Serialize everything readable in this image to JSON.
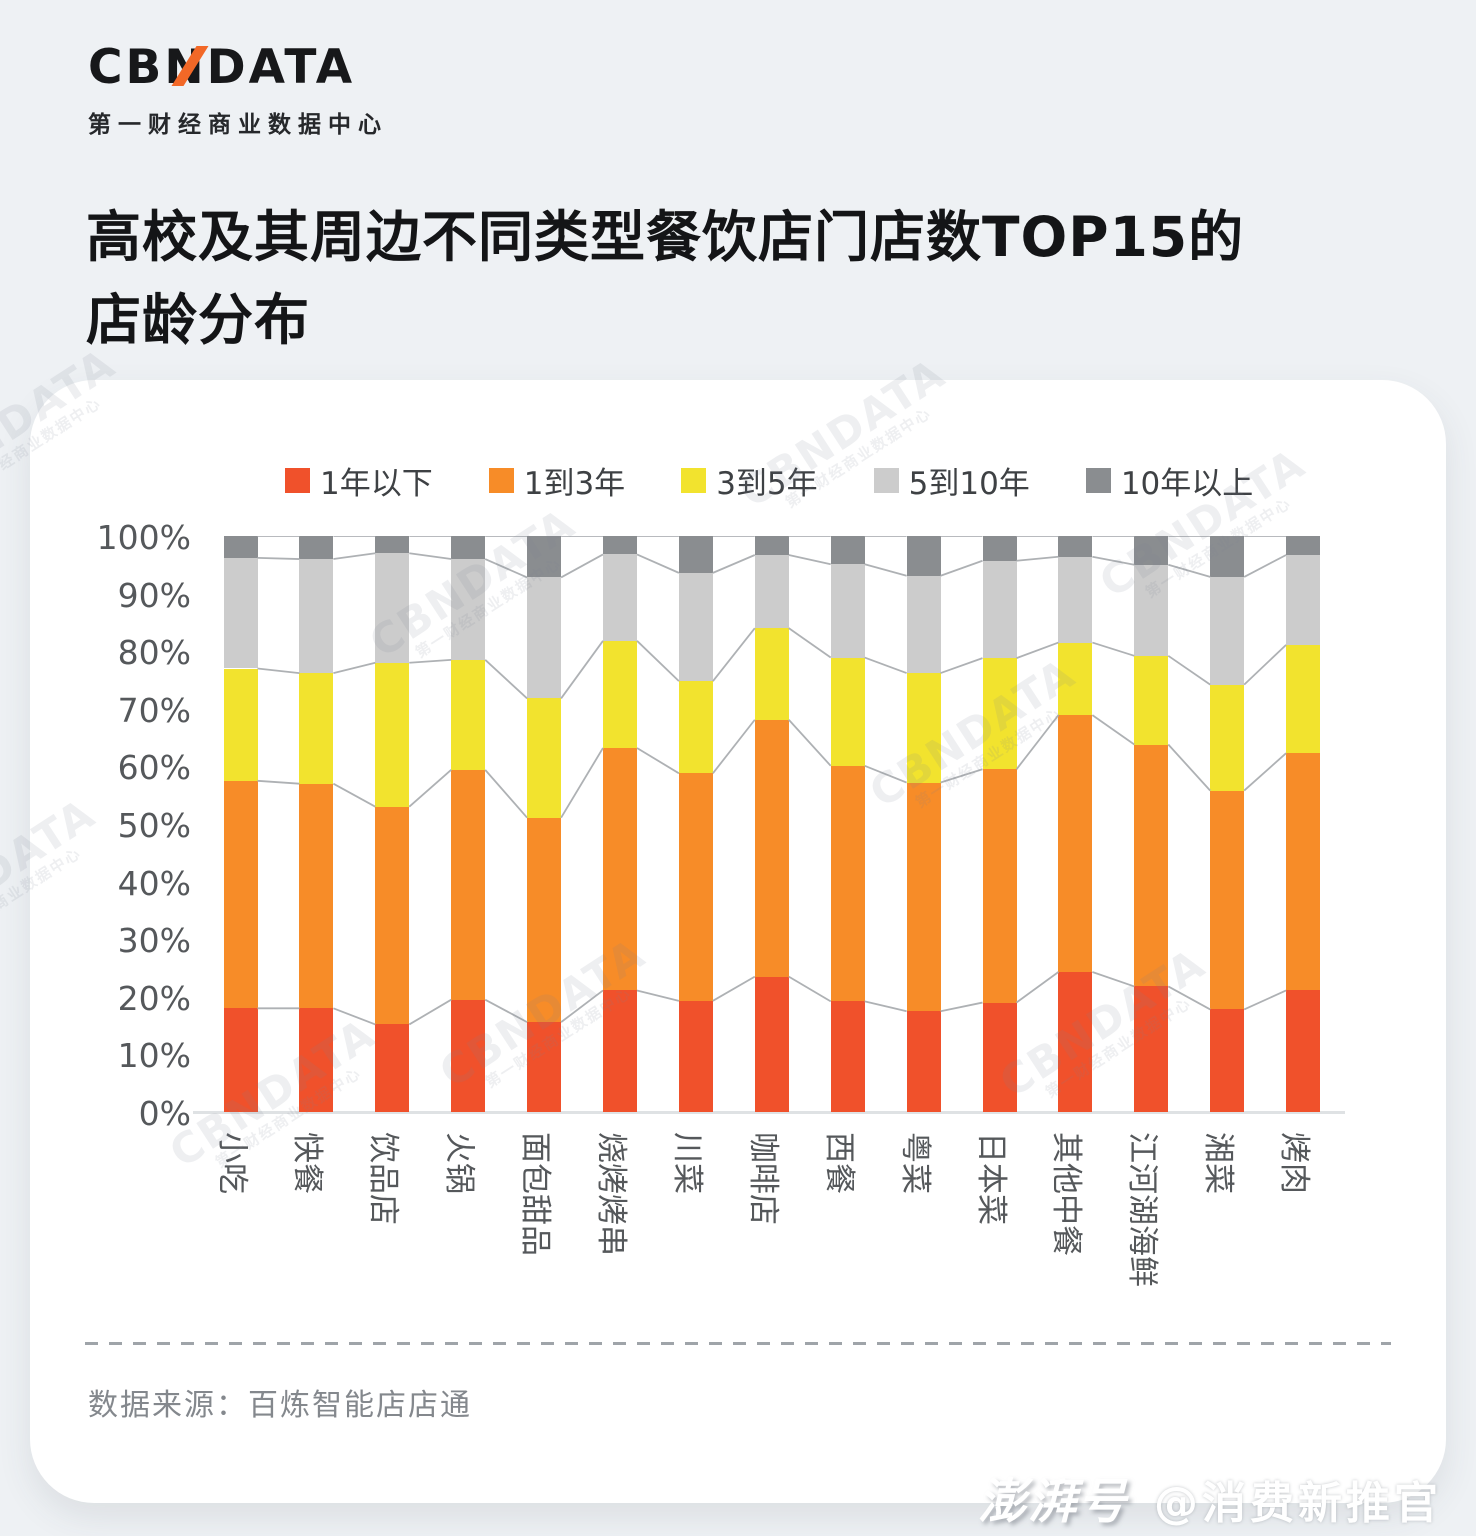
{
  "logo": {
    "text": "CBNDATA",
    "subtitle": "第一财经商业数据中心"
  },
  "title": {
    "line1": "高校及其周边不同类型餐饮店门店数TOP15的",
    "line2": "店龄分布"
  },
  "footer": {
    "source": "数据来源：百炼智能店店通"
  },
  "page_watermark": {
    "brand": "澎湃号",
    "account": "@消费新推官"
  },
  "chart_watermark": {
    "line1": "CBNDATA",
    "line2": "第一财经商业数据中心"
  },
  "chart_data": {
    "type": "bar",
    "stacked": true,
    "ylim": [
      0,
      100
    ],
    "y_ticks": [
      "0%",
      "10%",
      "20%",
      "30%",
      "40%",
      "50%",
      "60%",
      "70%",
      "80%",
      "90%",
      "100%"
    ],
    "grid": false,
    "legend_position": "top",
    "categories": [
      "小吃",
      "快餐",
      "饮品店",
      "火锅",
      "面包甜品",
      "烧烤烤串",
      "川菜",
      "咖啡店",
      "西餐",
      "粤菜",
      "日本菜",
      "其他中餐",
      "江河湖海鲜",
      "湘菜",
      "烤肉"
    ],
    "series": [
      {
        "name": "1年以下",
        "color": "#f0512b",
        "values": [
          18.0,
          18.0,
          15.2,
          19.5,
          15.6,
          21.1,
          19.3,
          23.5,
          19.2,
          17.5,
          19.0,
          24.3,
          21.8,
          17.8,
          21.1
        ]
      },
      {
        "name": "1到3年",
        "color": "#f78c28",
        "values": [
          39.5,
          39.0,
          37.8,
          39.9,
          35.5,
          42.1,
          39.5,
          44.6,
          40.9,
          39.7,
          40.5,
          44.6,
          42.0,
          38.0,
          41.2
        ]
      },
      {
        "name": "3到5年",
        "color": "#f2e32e",
        "values": [
          19.5,
          19.2,
          25.0,
          19.1,
          20.7,
          18.6,
          16.0,
          15.9,
          18.8,
          19.0,
          19.3,
          12.6,
          15.4,
          18.4,
          18.8
        ]
      },
      {
        "name": "5到10年",
        "color": "#cccccc",
        "values": [
          19.2,
          19.8,
          19.0,
          17.5,
          21.0,
          15.0,
          18.8,
          12.7,
          16.2,
          16.9,
          16.9,
          14.9,
          15.8,
          18.7,
          15.6
        ]
      },
      {
        "name": "10年以上",
        "color": "#8a8d90",
        "values": [
          3.8,
          4.0,
          3.0,
          4.0,
          7.2,
          3.2,
          6.4,
          3.3,
          4.9,
          6.9,
          4.3,
          3.6,
          5.0,
          7.1,
          3.3
        ]
      }
    ],
    "connector_color": "#aeb1b4",
    "watermark_positions": [
      [
        -130,
        20
      ],
      [
        -150,
        470
      ],
      [
        130,
        690
      ],
      [
        400,
        610
      ],
      [
        330,
        180
      ],
      [
        700,
        30
      ],
      [
        830,
        330
      ],
      [
        960,
        620
      ],
      [
        1060,
        120
      ]
    ]
  }
}
